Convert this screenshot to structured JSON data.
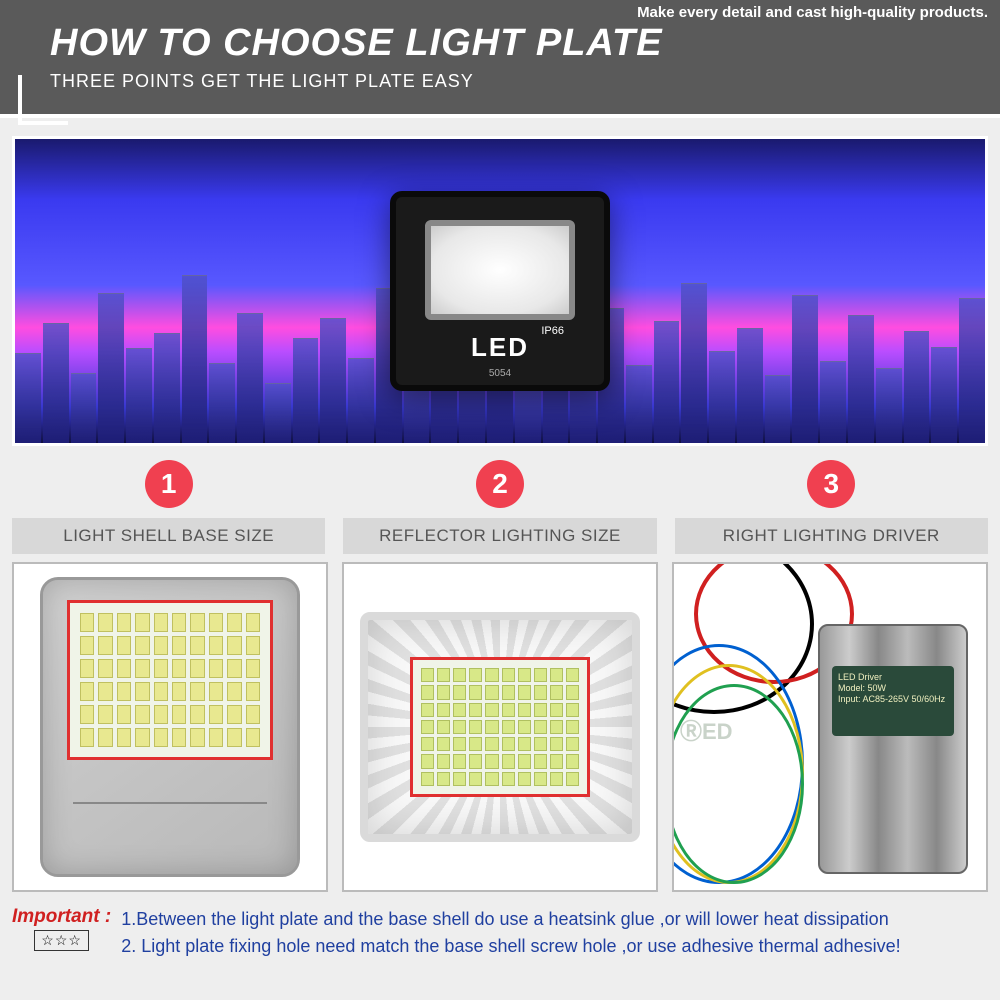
{
  "header": {
    "tagline": "Make every detail and cast high-quality products.",
    "title": "HOW TO CHOOSE LIGHT PLATE",
    "subtitle": "THREE POINTS GET THE LIGHT PLATE EASY"
  },
  "hero": {
    "led_text": "LED",
    "ip_rating": "IP66",
    "model": "5054"
  },
  "points": [
    {
      "num": "1",
      "label": "LIGHT SHELL BASE SIZE"
    },
    {
      "num": "2",
      "label": "REFLECTOR LIGHTING SIZE"
    },
    {
      "num": "3",
      "label": "RIGHT LIGHTING DRIVER"
    }
  ],
  "driver": {
    "line1": "LED Driver",
    "line2": "Model: 50W",
    "line3": "Input: AC85-265V 50/60Hz"
  },
  "footer": {
    "important_label": "Important :",
    "stars": "☆☆☆",
    "line1": "1.Between the light plate and the base shell do use a heatsink glue ,or will lower heat dissipation",
    "line2": "2. Light plate fixing hole need match the base shell screw hole ,or use adhesive thermal adhesive!"
  },
  "colors": {
    "header_bg": "#5a5a5a",
    "accent_red": "#f04050",
    "border_red": "#e03030",
    "link_blue": "#2040a0",
    "warn_red": "#d02020"
  },
  "skyline_heights": [
    90,
    120,
    70,
    150,
    95,
    110,
    168,
    80,
    130,
    60,
    105,
    125,
    85,
    155,
    72,
    118,
    98,
    140,
    65,
    108,
    88,
    135,
    78,
    122,
    160,
    92,
    115,
    68,
    148,
    82,
    128,
    75,
    112,
    96,
    145
  ],
  "buildings_count": 35,
  "pcb1_chips": 60,
  "pcb2_chips": 70
}
